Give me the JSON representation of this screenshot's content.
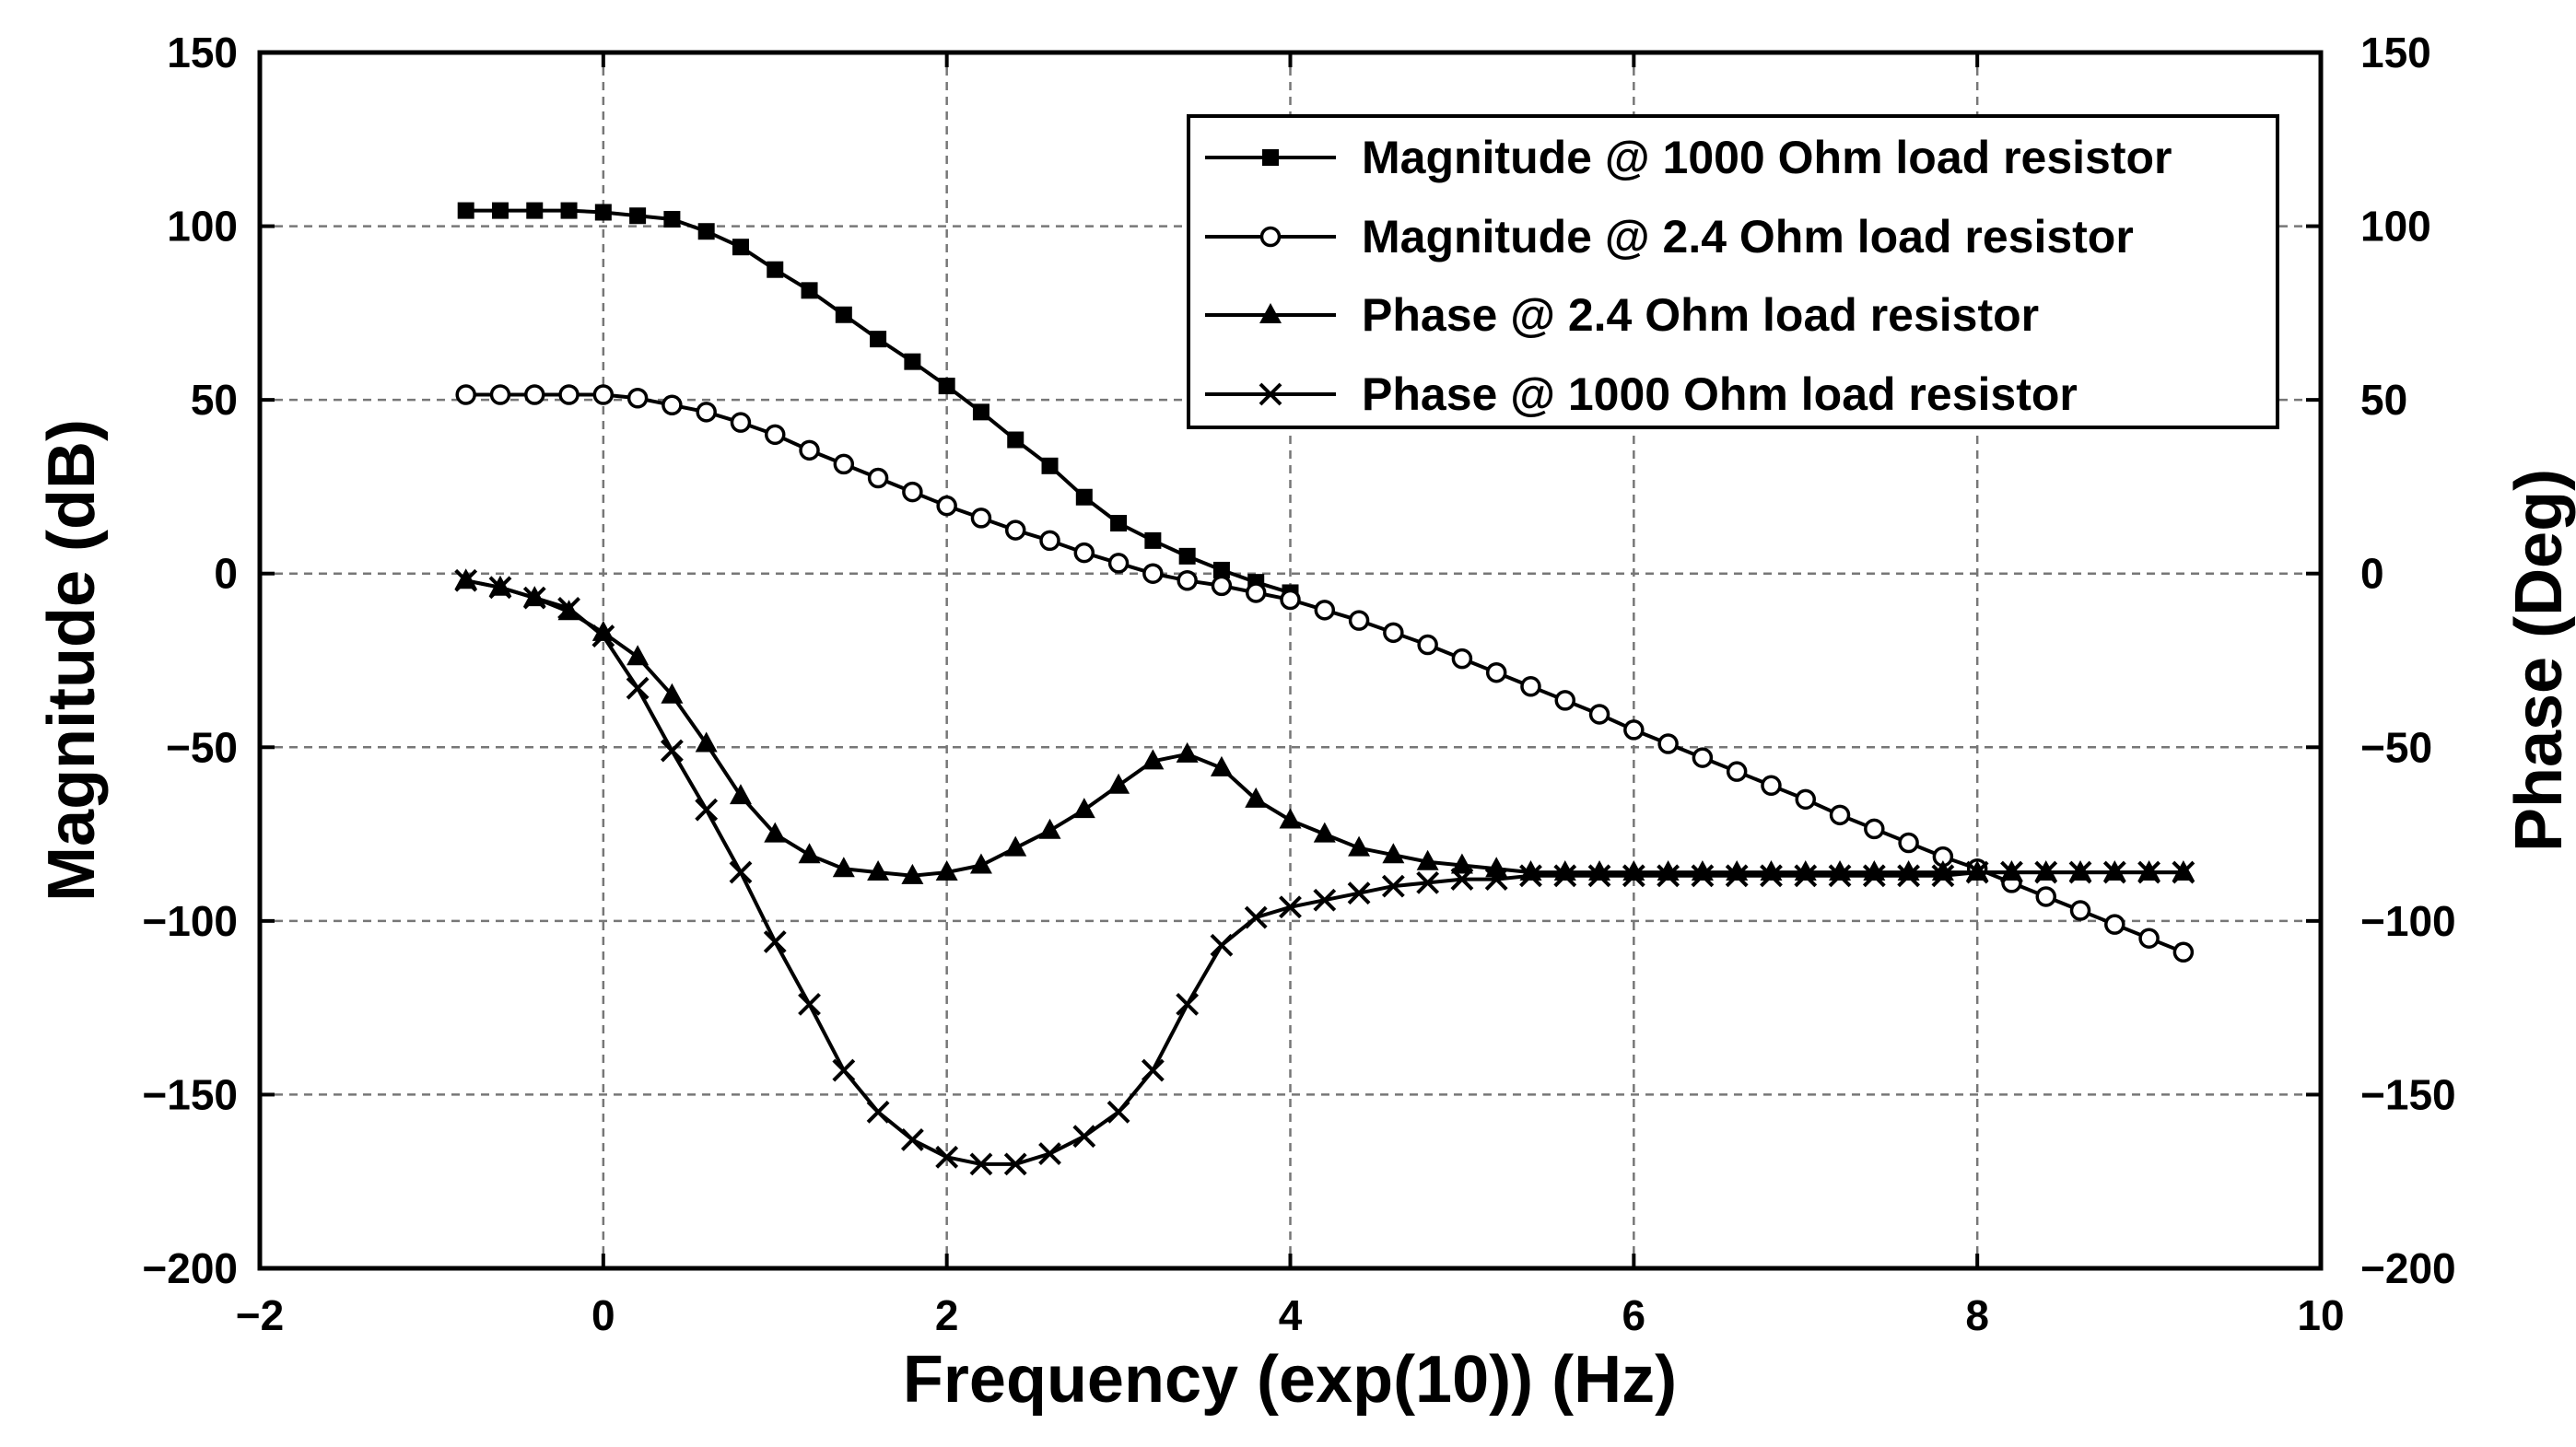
{
  "chart_data": {
    "type": "line",
    "title": "",
    "xlabel": "Frequency (exp(10)) (Hz)",
    "ylabel_left": "Magnitude (dB)",
    "ylabel_right": "Phase (Deg)",
    "xlim": [
      -2,
      10
    ],
    "ylim_left": [
      -200,
      150
    ],
    "ylim_right": [
      -200,
      150
    ],
    "grid": true,
    "legend_position": "top-right",
    "x_ticks": [
      -2,
      0,
      2,
      4,
      6,
      8,
      10
    ],
    "x_tick_labels": [
      "−2",
      "0",
      "2",
      "4",
      "6",
      "8",
      "10"
    ],
    "y_ticks": [
      150,
      100,
      50,
      0,
      -50,
      -100,
      -150,
      -200
    ],
    "y_tick_labels_left": [
      "150",
      "100",
      "50",
      "0",
      "−50",
      "−100",
      "−150",
      "−200"
    ],
    "y_tick_labels_right": [
      "150",
      "100",
      "50",
      "0",
      "−50",
      "−100",
      "−150",
      "−200"
    ],
    "series": [
      {
        "name": "Magnitude @ 1000 Ohm load resistor",
        "marker": "square",
        "x": [
          -0.8,
          -0.6,
          -0.4,
          -0.2,
          0,
          0.2,
          0.4,
          0.6,
          0.8,
          1,
          1.2,
          1.4,
          1.6,
          1.8,
          2,
          2.2,
          2.4,
          2.6,
          2.8,
          3,
          3.2,
          3.4,
          3.6,
          3.8,
          4
        ],
        "y": [
          104.5,
          104.5,
          104.5,
          104.5,
          104,
          103,
          102,
          98.5,
          94,
          87.5,
          81.5,
          74.5,
          67.5,
          61,
          54,
          46.5,
          38.5,
          31,
          22,
          14.5,
          9.5,
          5,
          1,
          -2.5,
          -5.5
        ]
      },
      {
        "name": "Magnitude @ 2.4 Ohm load resistor",
        "marker": "circle",
        "x": [
          -0.8,
          -0.6,
          -0.4,
          -0.2,
          0,
          0.2,
          0.4,
          0.6,
          0.8,
          1,
          1.2,
          1.4,
          1.6,
          1.8,
          2,
          2.2,
          2.4,
          2.6,
          2.8,
          3,
          3.2,
          3.4,
          3.6,
          3.8,
          4,
          4.2,
          4.4,
          4.6,
          4.8,
          5,
          5.2,
          5.4,
          5.6,
          5.8,
          6,
          6.2,
          6.4,
          6.6,
          6.8,
          7,
          7.2,
          7.4,
          7.6,
          7.8,
          8,
          8.2,
          8.4,
          8.6,
          8.8,
          9,
          9.2
        ],
        "y": [
          51.5,
          51.5,
          51.5,
          51.5,
          51.5,
          50.5,
          48.5,
          46.5,
          43.5,
          40,
          35.5,
          31.5,
          27.5,
          23.5,
          19.5,
          16,
          12.5,
          9.5,
          6,
          3,
          0,
          -2,
          -3.5,
          -5.5,
          -7.5,
          -10.5,
          -13.5,
          -17,
          -20.5,
          -24.5,
          -28.5,
          -32.5,
          -36.5,
          -40.5,
          -45,
          -49,
          -53,
          -57,
          -61,
          -65,
          -69.5,
          -73.5,
          -77.5,
          -81.5,
          -85,
          -89,
          -93,
          -97,
          -101,
          -105,
          -109
        ]
      },
      {
        "name": "Phase @ 2.4 Ohm load resistor",
        "marker": "triangle",
        "x": [
          -0.8,
          -0.6,
          -0.4,
          -0.2,
          0,
          0.2,
          0.4,
          0.6,
          0.8,
          1,
          1.2,
          1.4,
          1.6,
          1.8,
          2,
          2.2,
          2.4,
          2.6,
          2.8,
          3,
          3.2,
          3.4,
          3.6,
          3.8,
          4,
          4.2,
          4.4,
          4.6,
          4.8,
          5,
          5.2,
          5.4,
          5.6,
          5.8,
          6,
          6.2,
          6.4,
          6.6,
          6.8,
          7,
          7.2,
          7.4,
          7.6,
          7.8,
          8,
          8.2,
          8.4,
          8.6,
          8.8,
          9,
          9.2
        ],
        "y": [
          -2,
          -4,
          -7,
          -11,
          -17,
          -24,
          -35,
          -49,
          -64,
          -75,
          -81,
          -85,
          -86,
          -87,
          -86,
          -84,
          -79,
          -74,
          -68,
          -61,
          -54,
          -52,
          -56,
          -65,
          -71,
          -75,
          -79,
          -81,
          -83,
          -84,
          -85,
          -86,
          -86,
          -86,
          -86,
          -86,
          -86,
          -86,
          -86,
          -86,
          -86,
          -86,
          -86,
          -86,
          -86,
          -86,
          -86,
          -86,
          -86,
          -86,
          -86
        ]
      },
      {
        "name": "Phase @ 1000 Ohm load resistor",
        "marker": "x",
        "x": [
          -0.8,
          -0.6,
          -0.4,
          -0.2,
          0,
          0.2,
          0.4,
          0.6,
          0.8,
          1,
          1.2,
          1.4,
          1.6,
          1.8,
          2,
          2.2,
          2.4,
          2.6,
          2.8,
          3,
          3.2,
          3.4,
          3.6,
          3.8,
          4,
          4.2,
          4.4,
          4.6,
          4.8,
          5,
          5.2,
          5.4,
          5.6,
          5.8,
          6,
          6.2,
          6.4,
          6.6,
          6.8,
          7,
          7.2,
          7.4,
          7.6,
          7.8,
          8,
          8.2,
          8.4,
          8.6,
          8.8,
          9,
          9.2
        ],
        "y": [
          -2,
          -4,
          -7,
          -10,
          -18,
          -33,
          -51,
          -68,
          -86,
          -106,
          -124,
          -143,
          -155,
          -163,
          -168,
          -170,
          -170,
          -167,
          -162,
          -155,
          -143,
          -124,
          -107,
          -99,
          -96,
          -94,
          -92,
          -90,
          -89,
          -88,
          -88,
          -87,
          -87,
          -87,
          -87,
          -87,
          -87,
          -87,
          -87,
          -87,
          -87,
          -87,
          -87,
          -87,
          -86,
          -86,
          -86,
          -86,
          -86,
          -86,
          -86
        ]
      }
    ]
  }
}
